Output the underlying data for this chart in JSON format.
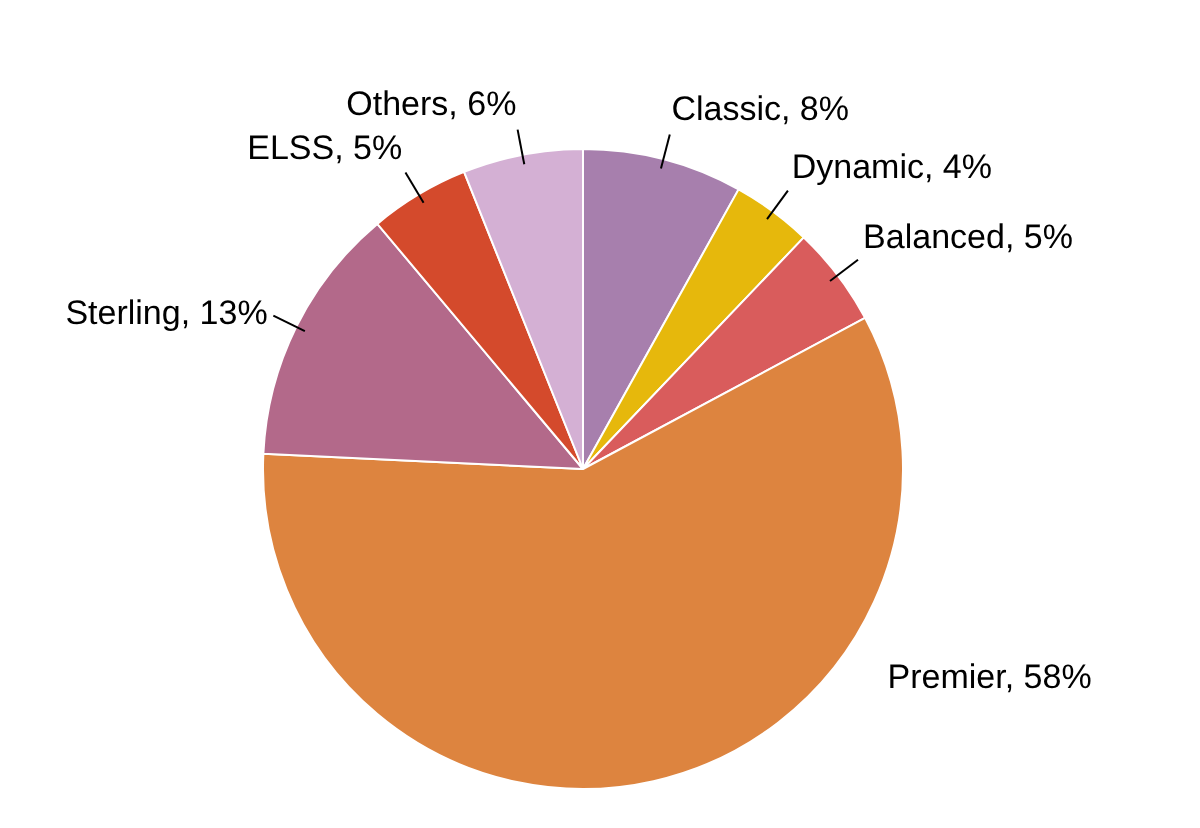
{
  "chart_data": {
    "type": "pie",
    "categories": [
      "Classic",
      "Dynamic",
      "Balanced",
      "Premier",
      "Sterling",
      "ELSS",
      "Others"
    ],
    "values": [
      8,
      4,
      5,
      58,
      13,
      5,
      6
    ],
    "colors": [
      "#a77fad",
      "#e6b80c",
      "#d95c5c",
      "#dd843f",
      "#b3698a",
      "#d44a2c",
      "#d4b0d4"
    ],
    "value_labels": [
      "8%",
      "4%",
      "5%",
      "58%",
      "13%",
      "5%",
      "6%"
    ],
    "legend": false
  }
}
